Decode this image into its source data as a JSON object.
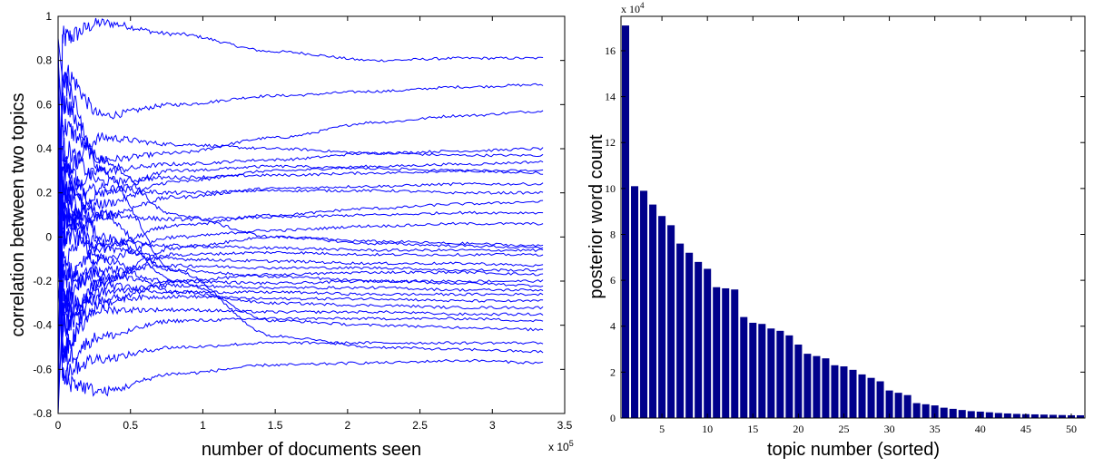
{
  "chart_data": [
    {
      "type": "line",
      "xlabel": "number of documents seen",
      "ylabel": "correlation between two topics",
      "x_multiplier": "x 10",
      "x_multiplier_exponent": "5",
      "xlim": [
        0,
        3.5
      ],
      "ylim": [
        -0.8,
        1
      ],
      "xticks": [
        "0",
        "0.5",
        "1",
        "1.5",
        "2",
        "2.5",
        "3",
        "3.5"
      ],
      "yticks": [
        "-0.8",
        "-0.6",
        "-0.4",
        "-0.2",
        "0",
        "0.2",
        "0.4",
        "0.6",
        "0.8",
        "1"
      ],
      "x_data_end": 3.35,
      "color": "#0000ff",
      "grid": false,
      "series": [
        {
          "values": [
            0.9,
            0.97,
            0.92,
            0.84,
            0.8,
            0.81,
            0.81
          ]
        },
        {
          "values": [
            0.75,
            0.55,
            0.6,
            0.64,
            0.66,
            0.68,
            0.69
          ]
        },
        {
          "values": [
            0.5,
            0.35,
            0.38,
            0.45,
            0.52,
            0.55,
            0.57
          ]
        },
        {
          "values": [
            0.3,
            0.45,
            0.42,
            0.4,
            0.38,
            0.37,
            0.37
          ]
        },
        {
          "values": [
            0.2,
            0.3,
            0.33,
            0.35,
            0.38,
            0.39,
            0.4
          ]
        },
        {
          "values": [
            0.1,
            0.15,
            0.25,
            0.3,
            0.32,
            0.33,
            0.34
          ]
        },
        {
          "values": [
            0.4,
            0.25,
            0.27,
            0.28,
            0.29,
            0.3,
            0.3
          ]
        },
        {
          "values": [
            -0.1,
            0.1,
            0.18,
            0.22,
            0.23,
            0.24,
            0.24
          ]
        },
        {
          "values": [
            0.15,
            0.22,
            0.2,
            0.21,
            0.21,
            0.2,
            0.2
          ]
        },
        {
          "values": [
            -0.2,
            -0.05,
            0.05,
            0.1,
            0.13,
            0.15,
            0.16
          ]
        },
        {
          "values": [
            0.05,
            0.1,
            0.08,
            0.09,
            0.1,
            0.11,
            0.11
          ]
        },
        {
          "values": [
            -0.3,
            -0.1,
            0.0,
            0.03,
            0.05,
            0.06,
            0.06
          ]
        },
        {
          "values": [
            0.6,
            0.35,
            0.1,
            0.0,
            -0.03,
            -0.04,
            -0.05
          ]
        },
        {
          "values": [
            0.0,
            -0.02,
            -0.04,
            -0.05,
            -0.06,
            -0.06,
            -0.06
          ]
        },
        {
          "values": [
            -0.4,
            -0.2,
            -0.08,
            -0.07,
            -0.08,
            -0.08,
            -0.08
          ]
        },
        {
          "values": [
            0.1,
            -0.05,
            -0.1,
            -0.11,
            -0.12,
            -0.12,
            -0.13
          ]
        },
        {
          "values": [
            -0.25,
            -0.15,
            -0.13,
            -0.14,
            -0.14,
            -0.15,
            -0.15
          ]
        },
        {
          "values": [
            -0.5,
            -0.3,
            -0.2,
            -0.17,
            -0.16,
            -0.16,
            -0.17
          ]
        },
        {
          "values": [
            0.3,
            0.0,
            -0.15,
            -0.18,
            -0.2,
            -0.21,
            -0.22
          ]
        },
        {
          "values": [
            -0.35,
            -0.25,
            -0.22,
            -0.23,
            -0.23,
            -0.24,
            -0.24
          ]
        },
        {
          "values": [
            -0.15,
            -0.22,
            -0.25,
            -0.25,
            -0.26,
            -0.26,
            -0.26
          ]
        },
        {
          "values": [
            -0.3,
            -0.28,
            -0.27,
            -0.28,
            -0.28,
            -0.29,
            -0.29
          ]
        },
        {
          "values": [
            0.2,
            -0.1,
            -0.25,
            -0.3,
            -0.31,
            -0.32,
            -0.32
          ]
        },
        {
          "values": [
            -0.4,
            -0.33,
            -0.33,
            -0.34,
            -0.34,
            -0.35,
            -0.35
          ]
        },
        {
          "values": [
            -0.55,
            -0.45,
            -0.38,
            -0.37,
            -0.37,
            -0.37,
            -0.38
          ]
        },
        {
          "values": [
            0.35,
            0.1,
            -0.2,
            -0.38,
            -0.4,
            -0.41,
            -0.42
          ]
        },
        {
          "values": [
            -0.6,
            -0.55,
            -0.5,
            -0.48,
            -0.48,
            -0.48,
            -0.48
          ]
        },
        {
          "values": [
            0.7,
            0.3,
            -0.15,
            -0.45,
            -0.5,
            -0.51,
            -0.52
          ]
        },
        {
          "values": [
            -0.65,
            -0.7,
            -0.62,
            -0.58,
            -0.57,
            -0.56,
            -0.57
          ]
        },
        {
          "values": [
            0.0,
            0.2,
            0.3,
            0.32,
            0.31,
            0.3,
            0.29
          ]
        },
        {
          "values": [
            -0.5,
            -0.2,
            -0.05,
            0.0,
            -0.02,
            -0.03,
            -0.04
          ]
        },
        {
          "values": [
            0.25,
            -0.18,
            -0.2,
            -0.21,
            -0.2,
            -0.2,
            -0.2
          ]
        }
      ]
    },
    {
      "type": "bar",
      "xlabel": "topic number (sorted)",
      "ylabel": "posterior word count",
      "y_multiplier": "x 10",
      "y_multiplier_exponent": "4",
      "xlim": [
        0.5,
        51.5
      ],
      "ylim": [
        0,
        17.5
      ],
      "xticks": [
        "5",
        "10",
        "15",
        "20",
        "25",
        "30",
        "35",
        "40",
        "45",
        "50"
      ],
      "yticks": [
        "0",
        "2",
        "4",
        "6",
        "8",
        "10",
        "12",
        "14",
        "16"
      ],
      "color": "#00008b",
      "grid": false,
      "categories": [
        1,
        2,
        3,
        4,
        5,
        6,
        7,
        8,
        9,
        10,
        11,
        12,
        13,
        14,
        15,
        16,
        17,
        18,
        19,
        20,
        21,
        22,
        23,
        24,
        25,
        26,
        27,
        28,
        29,
        30,
        31,
        32,
        33,
        34,
        35,
        36,
        37,
        38,
        39,
        40,
        41,
        42,
        43,
        44,
        45,
        46,
        47,
        48,
        49,
        50,
        51
      ],
      "values": [
        17.1,
        10.1,
        9.9,
        9.3,
        8.8,
        8.4,
        7.6,
        7.2,
        6.8,
        6.5,
        5.7,
        5.65,
        5.6,
        4.4,
        4.15,
        4.1,
        3.9,
        3.8,
        3.6,
        3.2,
        2.8,
        2.7,
        2.6,
        2.3,
        2.25,
        2.1,
        1.9,
        1.75,
        1.6,
        1.2,
        1.1,
        1.0,
        0.65,
        0.6,
        0.55,
        0.45,
        0.4,
        0.35,
        0.3,
        0.28,
        0.25,
        0.22,
        0.2,
        0.18,
        0.17,
        0.16,
        0.15,
        0.14,
        0.13,
        0.12,
        0.12
      ]
    }
  ]
}
